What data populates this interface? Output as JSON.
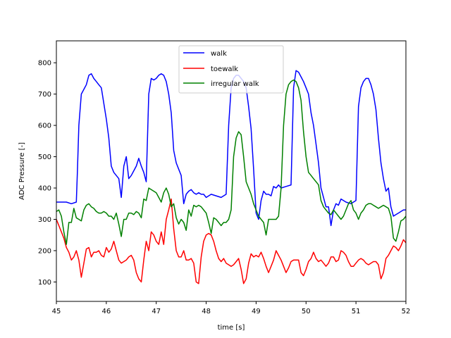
{
  "chart_data": {
    "type": "line",
    "xlabel": "time [s]",
    "ylabel": "ADC Pressure [-]",
    "xlim": [
      45,
      52
    ],
    "ylim": [
      38,
      870
    ],
    "xticks": [
      45,
      46,
      47,
      48,
      49,
      50,
      51,
      52
    ],
    "yticks": [
      100,
      200,
      300,
      400,
      500,
      600,
      700,
      800
    ],
    "grid": false,
    "legend_position": "upper center",
    "series": [
      {
        "name": "walk",
        "color": "#0000ff",
        "x": [
          45.0,
          45.2,
          45.3,
          45.4,
          45.42,
          45.45,
          45.5,
          45.55,
          45.6,
          45.65,
          45.7,
          45.75,
          45.8,
          45.85,
          45.9,
          46.0,
          46.05,
          46.1,
          46.15,
          46.2,
          46.25,
          46.3,
          46.35,
          46.4,
          46.45,
          46.5,
          46.55,
          46.6,
          46.65,
          46.7,
          46.75,
          46.8,
          46.85,
          46.9,
          46.95,
          47.0,
          47.05,
          47.1,
          47.15,
          47.2,
          47.25,
          47.3,
          47.35,
          47.4,
          47.45,
          47.5,
          47.55,
          47.6,
          47.65,
          47.7,
          47.75,
          47.8,
          47.85,
          47.9,
          47.95,
          48.0,
          48.1,
          48.2,
          48.3,
          48.4,
          48.45,
          48.5,
          48.55,
          48.6,
          48.65,
          48.7,
          48.75,
          48.8,
          48.85,
          48.9,
          48.95,
          49.0,
          49.05,
          49.1,
          49.15,
          49.2,
          49.25,
          49.3,
          49.35,
          49.4,
          49.45,
          49.5,
          49.6,
          49.7,
          49.75,
          49.8,
          49.85,
          49.9,
          49.95,
          50.0,
          50.05,
          50.1,
          50.15,
          50.2,
          50.25,
          50.3,
          50.35,
          50.4,
          50.45,
          50.5,
          50.55,
          50.6,
          50.65,
          50.7,
          50.75,
          50.8,
          50.9,
          51.0,
          51.05,
          51.1,
          51.15,
          51.2,
          51.25,
          51.3,
          51.35,
          51.4,
          51.45,
          51.5,
          51.55,
          51.6,
          51.65,
          51.7,
          51.75,
          51.8,
          51.85,
          51.9,
          51.95,
          52.0
        ],
        "y": [
          355,
          355,
          350,
          355,
          450,
          600,
          700,
          715,
          730,
          760,
          765,
          750,
          740,
          730,
          720,
          620,
          560,
          470,
          450,
          440,
          430,
          370,
          470,
          500,
          430,
          440,
          455,
          470,
          495,
          470,
          450,
          420,
          700,
          750,
          745,
          750,
          760,
          765,
          760,
          740,
          700,
          640,
          520,
          480,
          460,
          440,
          350,
          380,
          390,
          395,
          385,
          380,
          385,
          380,
          380,
          370,
          380,
          375,
          370,
          380,
          600,
          720,
          750,
          760,
          760,
          750,
          740,
          720,
          660,
          590,
          460,
          320,
          300,
          360,
          390,
          380,
          380,
          375,
          405,
          400,
          410,
          400,
          405,
          410,
          720,
          775,
          770,
          755,
          740,
          720,
          700,
          640,
          600,
          540,
          480,
          400,
          370,
          340,
          340,
          280,
          330,
          350,
          345,
          365,
          360,
          355,
          350,
          360,
          660,
          720,
          740,
          750,
          750,
          730,
          700,
          650,
          560,
          480,
          430,
          390,
          400,
          340,
          310,
          315,
          320,
          325,
          330,
          330
        ]
      },
      {
        "name": "toewalk",
        "color": "#ff0000",
        "x": [
          45.0,
          45.1,
          45.15,
          45.2,
          45.25,
          45.3,
          45.35,
          45.4,
          45.45,
          45.5,
          45.55,
          45.6,
          45.65,
          45.7,
          45.75,
          45.8,
          45.85,
          45.9,
          45.95,
          46.0,
          46.05,
          46.1,
          46.15,
          46.2,
          46.25,
          46.3,
          46.35,
          46.4,
          46.45,
          46.5,
          46.55,
          46.6,
          46.65,
          46.7,
          46.75,
          46.8,
          46.85,
          46.9,
          46.95,
          47.0,
          47.05,
          47.1,
          47.15,
          47.2,
          47.25,
          47.3,
          47.35,
          47.4,
          47.45,
          47.5,
          47.55,
          47.6,
          47.65,
          47.7,
          47.75,
          47.8,
          47.85,
          47.9,
          47.95,
          48.0,
          48.05,
          48.1,
          48.15,
          48.2,
          48.25,
          48.3,
          48.35,
          48.4,
          48.45,
          48.5,
          48.55,
          48.6,
          48.65,
          48.7,
          48.75,
          48.8,
          48.85,
          48.9,
          48.95,
          49.0,
          49.05,
          49.1,
          49.15,
          49.2,
          49.25,
          49.3,
          49.35,
          49.4,
          49.45,
          49.5,
          49.55,
          49.6,
          49.65,
          49.7,
          49.75,
          49.8,
          49.85,
          49.9,
          49.95,
          50.0,
          50.05,
          50.1,
          50.15,
          50.2,
          50.25,
          50.3,
          50.35,
          50.4,
          50.45,
          50.5,
          50.55,
          50.6,
          50.65,
          50.7,
          50.75,
          50.8,
          50.85,
          50.9,
          50.95,
          51.0,
          51.05,
          51.1,
          51.15,
          51.2,
          51.25,
          51.3,
          51.35,
          51.4,
          51.45,
          51.5,
          51.55,
          51.6,
          51.65,
          51.7,
          51.75,
          51.8,
          51.85,
          51.9,
          51.95,
          52.0
        ],
        "y": [
          300,
          260,
          240,
          210,
          195,
          170,
          180,
          200,
          170,
          115,
          160,
          205,
          210,
          180,
          195,
          195,
          200,
          185,
          180,
          210,
          195,
          205,
          230,
          200,
          170,
          160,
          165,
          170,
          180,
          185,
          170,
          130,
          110,
          100,
          170,
          230,
          200,
          260,
          250,
          230,
          220,
          260,
          220,
          300,
          330,
          365,
          270,
          200,
          180,
          180,
          200,
          170,
          170,
          175,
          160,
          100,
          95,
          180,
          230,
          250,
          255,
          250,
          230,
          200,
          175,
          165,
          175,
          160,
          155,
          150,
          155,
          165,
          175,
          140,
          95,
          110,
          160,
          190,
          180,
          185,
          180,
          195,
          175,
          150,
          130,
          150,
          170,
          200,
          185,
          170,
          150,
          130,
          145,
          165,
          170,
          170,
          170,
          130,
          120,
          140,
          165,
          175,
          195,
          175,
          165,
          170,
          160,
          150,
          160,
          180,
          180,
          165,
          170,
          200,
          195,
          185,
          165,
          150,
          150,
          160,
          170,
          175,
          170,
          160,
          155,
          160,
          165,
          165,
          155,
          110,
          130,
          175,
          185,
          200,
          215,
          210,
          200,
          215,
          235,
          225
        ]
      },
      {
        "name": "irregular walk",
        "color": "#008000",
        "x": [
          45.0,
          45.05,
          45.1,
          45.15,
          45.2,
          45.25,
          45.3,
          45.35,
          45.4,
          45.45,
          45.5,
          45.55,
          45.6,
          45.65,
          45.7,
          45.75,
          45.8,
          45.85,
          45.9,
          45.95,
          46.0,
          46.05,
          46.1,
          46.15,
          46.2,
          46.25,
          46.3,
          46.35,
          46.4,
          46.45,
          46.5,
          46.55,
          46.6,
          46.65,
          46.7,
          46.75,
          46.8,
          46.85,
          46.9,
          46.95,
          47.0,
          47.05,
          47.1,
          47.15,
          47.2,
          47.25,
          47.3,
          47.35,
          47.4,
          47.45,
          47.5,
          47.55,
          47.6,
          47.65,
          47.7,
          47.75,
          47.8,
          47.85,
          47.9,
          47.95,
          48.0,
          48.05,
          48.1,
          48.15,
          48.2,
          48.25,
          48.3,
          48.35,
          48.4,
          48.45,
          48.5,
          48.55,
          48.6,
          48.65,
          48.7,
          48.75,
          48.8,
          48.85,
          48.9,
          48.95,
          49.0,
          49.05,
          49.1,
          49.15,
          49.2,
          49.25,
          49.3,
          49.35,
          49.4,
          49.45,
          49.5,
          49.55,
          49.6,
          49.65,
          49.7,
          49.75,
          49.8,
          49.85,
          49.9,
          49.95,
          50.0,
          50.05,
          50.1,
          50.15,
          50.2,
          50.25,
          50.3,
          50.35,
          50.4,
          50.45,
          50.5,
          50.55,
          50.6,
          50.65,
          50.7,
          50.75,
          50.8,
          50.85,
          50.9,
          50.95,
          51.0,
          51.05,
          51.1,
          51.15,
          51.2,
          51.25,
          51.3,
          51.35,
          51.4,
          51.45,
          51.5,
          51.55,
          51.6,
          51.65,
          51.7,
          51.75,
          51.8,
          51.85,
          51.9,
          51.95,
          52.0
        ],
        "y": [
          325,
          330,
          310,
          260,
          220,
          290,
          290,
          335,
          305,
          300,
          295,
          330,
          345,
          350,
          340,
          335,
          325,
          320,
          320,
          325,
          320,
          310,
          310,
          300,
          320,
          285,
          245,
          300,
          300,
          320,
          320,
          315,
          325,
          320,
          305,
          365,
          360,
          400,
          395,
          390,
          385,
          370,
          355,
          385,
          400,
          380,
          340,
          350,
          305,
          285,
          300,
          290,
          265,
          330,
          310,
          345,
          340,
          345,
          340,
          330,
          320,
          290,
          255,
          305,
          300,
          290,
          280,
          290,
          290,
          300,
          330,
          500,
          560,
          580,
          570,
          500,
          420,
          400,
          380,
          350,
          330,
          310,
          300,
          290,
          250,
          300,
          300,
          300,
          300,
          310,
          400,
          600,
          700,
          730,
          740,
          745,
          740,
          720,
          680,
          580,
          500,
          450,
          440,
          430,
          420,
          410,
          360,
          340,
          330,
          320,
          315,
          330,
          320,
          310,
          300,
          310,
          330,
          350,
          360,
          330,
          320,
          300,
          320,
          330,
          345,
          350,
          350,
          345,
          340,
          335,
          340,
          345,
          340,
          335,
          310,
          240,
          230,
          260,
          295,
          300,
          310
        ]
      }
    ]
  }
}
